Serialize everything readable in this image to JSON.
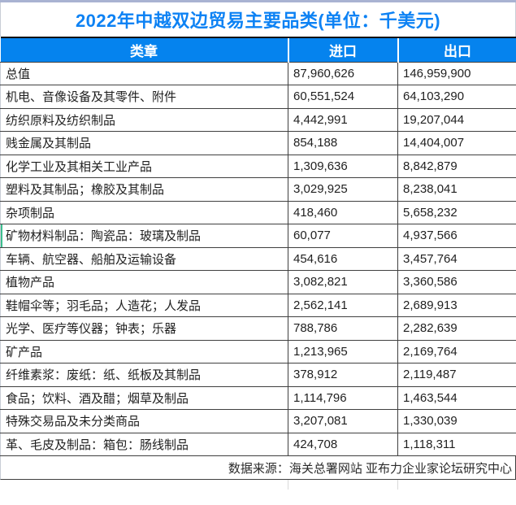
{
  "title": "2022年中越双边贸易主要品类(单位：千美元)",
  "colors": {
    "title_text": "#0d82f4",
    "header_bg": "#0583ee",
    "header_text": "#ffffff",
    "accent_green": "#3cbe8e",
    "border_dark": "#404040",
    "top_strip": "#a9b3d2"
  },
  "table": {
    "columns": [
      {
        "label": "类章"
      },
      {
        "label": "进口"
      },
      {
        "label": "出口"
      }
    ],
    "selection_marker_row": 7,
    "rows": [
      {
        "category": "总值",
        "import": "87,960,626",
        "export": "146,959,900"
      },
      {
        "category": "机电、音像设备及其零件、附件",
        "import": "60,551,524",
        "export": "64,103,290"
      },
      {
        "category": "纺织原料及纺织制品",
        "import": "4,442,991",
        "export": "19,207,044"
      },
      {
        "category": "贱金属及其制品",
        "import": "854,188",
        "export": "14,404,007"
      },
      {
        "category": "化学工业及其相关工业产品",
        "import": "1,309,636",
        "export": "8,842,879"
      },
      {
        "category": "塑料及其制品；橡胶及其制品",
        "import": "3,029,925",
        "export": "8,238,041"
      },
      {
        "category": "杂项制品",
        "import": "418,460",
        "export": "5,658,232"
      },
      {
        "category": "矿物材料制品：陶瓷品：玻璃及制品",
        "import": "60,077",
        "export": "4,937,566"
      },
      {
        "category": "车辆、航空器、船舶及运输设备",
        "import": "454,616",
        "export": "3,457,764"
      },
      {
        "category": "植物产品",
        "import": "3,082,821",
        "export": "3,360,586"
      },
      {
        "category": "鞋帽伞等；羽毛品；人造花；人发品",
        "import": "2,562,141",
        "export": "2,689,913"
      },
      {
        "category": "光学、医疗等仪器；钟表；乐器",
        "import": "788,786",
        "export": "2,282,639"
      },
      {
        "category": "矿产品",
        "import": "1,213,965",
        "export": "2,169,764"
      },
      {
        "category": "纤维素浆：废纸：纸、纸板及其制品",
        "import": "378,912",
        "export": "2,119,487"
      },
      {
        "category": "食品；饮料、酒及醋；烟草及制品",
        "import": "1,114,796",
        "export": "1,463,544"
      },
      {
        "category": "特殊交易品及未分类商品",
        "import": "3,207,081",
        "export": "1,330,039"
      },
      {
        "category": "革、毛皮及制品：箱包：肠线制品",
        "import": "424,708",
        "export": "1,118,311"
      }
    ]
  },
  "footer": {
    "source_text": "数据来源：海关总署网站 亚布力企业家论坛研究中心"
  },
  "chart_data": {
    "type": "table",
    "title": "2022年中越双边贸易主要品类(单位：千美元)",
    "unit": "千美元",
    "categories": [
      "总值",
      "机电、音像设备及其零件、附件",
      "纺织原料及纺织制品",
      "贱金属及其制品",
      "化学工业及其相关工业产品",
      "塑料及其制品；橡胶及其制品",
      "杂项制品",
      "矿物材料制品：陶瓷品：玻璃及制品",
      "车辆、航空器、船舶及运输设备",
      "植物产品",
      "鞋帽伞等；羽毛品；人造花；人发品",
      "光学、医疗等仪器；钟表；乐器",
      "矿产品",
      "纤维素浆：废纸：纸、纸板及其制品",
      "食品；饮料、酒及醋；烟草及制品",
      "特殊交易品及未分类商品",
      "革、毛皮及制品：箱包：肠线制品"
    ],
    "series": [
      {
        "name": "进口",
        "values": [
          87960626,
          60551524,
          4442991,
          854188,
          1309636,
          3029925,
          418460,
          60077,
          454616,
          3082821,
          2562141,
          788786,
          1213965,
          378912,
          1114796,
          3207081,
          424708
        ]
      },
      {
        "name": "出口",
        "values": [
          146959900,
          64103290,
          19207044,
          14404007,
          8842879,
          8238041,
          5658232,
          4937566,
          3457764,
          3360586,
          2689913,
          2282639,
          2169764,
          2119487,
          1463544,
          1330039,
          1118311
        ]
      }
    ],
    "source": "数据来源：海关总署网站 亚布力企业家论坛研究中心"
  }
}
